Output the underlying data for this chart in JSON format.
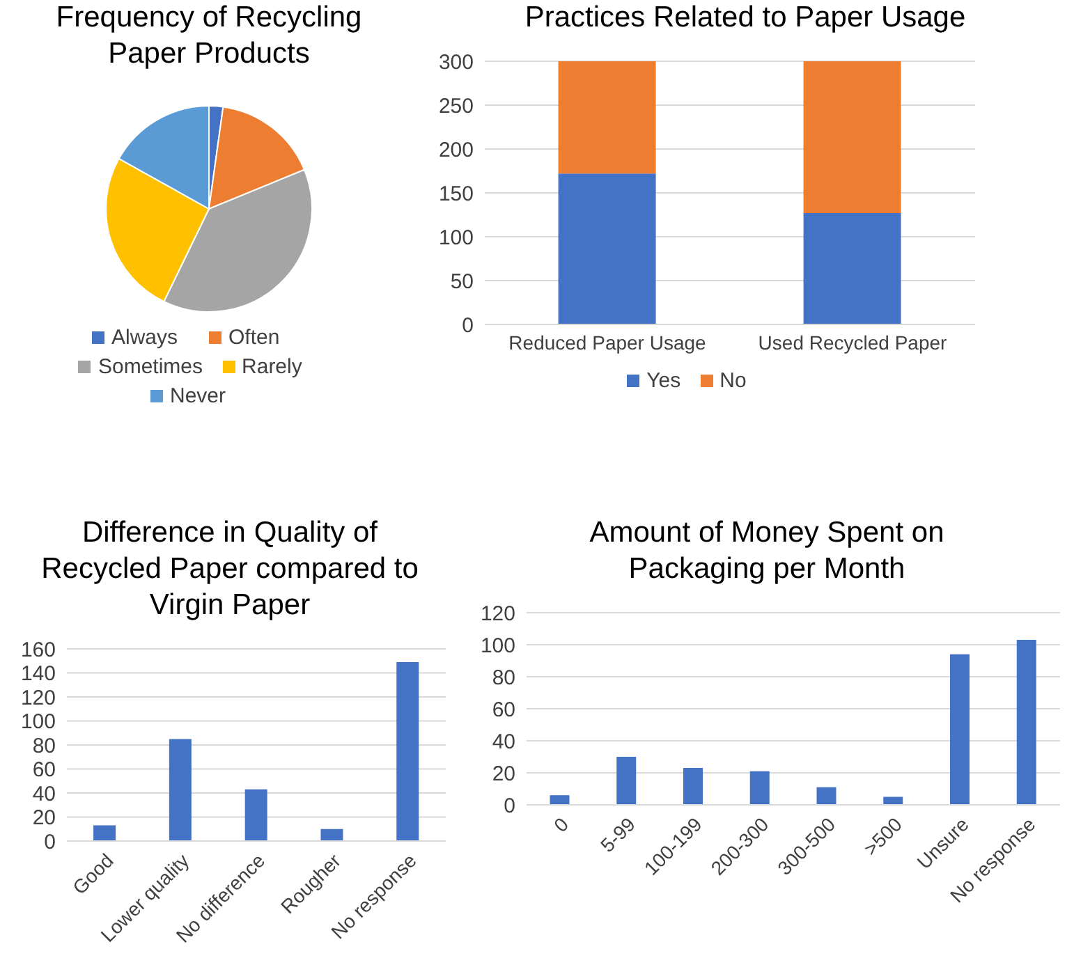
{
  "chart_data": [
    {
      "type": "pie",
      "title": "Frequency of Recycling Paper Products",
      "categories": [
        "Always",
        "Often",
        "Sometimes",
        "Rarely",
        "Never"
      ],
      "values": [
        2.2,
        16.6,
        38.4,
        25.9,
        16.9
      ],
      "colors": [
        "#4472c4",
        "#ed7d31",
        "#a5a5a5",
        "#ffc000",
        "#5b9bd5"
      ],
      "legend": "bottom"
    },
    {
      "type": "bar",
      "title": "Practices Related to Paper Usage",
      "categories": [
        "Reduced Paper Usage",
        "Used Recycled Paper"
      ],
      "stacked": true,
      "series": [
        {
          "name": "Yes",
          "color": "#4472c4",
          "values": [
            172,
            127
          ]
        },
        {
          "name": "No",
          "color": "#ed7d31",
          "values": [
            128,
            173
          ]
        }
      ],
      "ylim": [
        0,
        300
      ],
      "yticks": [
        0,
        50,
        100,
        150,
        200,
        250,
        300
      ],
      "grid": "y",
      "legend": "bottom"
    },
    {
      "type": "bar",
      "title": "Difference in Quality of Recycled Paper compared to Virgin Paper",
      "categories": [
        "Good",
        "Lower quality",
        "No difference",
        "Rougher",
        "No response"
      ],
      "values": [
        13,
        85,
        43,
        10,
        149
      ],
      "color": "#4472c4",
      "ylim": [
        0,
        160
      ],
      "yticks": [
        0,
        20,
        40,
        60,
        80,
        100,
        120,
        140,
        160
      ],
      "grid": "y"
    },
    {
      "type": "bar",
      "title": "Amount of Money Spent on Packaging per Month",
      "categories": [
        "0",
        "5-99",
        "100-199",
        "200-300",
        "300-500",
        ">500",
        "Unsure",
        "No response"
      ],
      "values": [
        6,
        30,
        23,
        21,
        11,
        5,
        94,
        103
      ],
      "color": "#4472c4",
      "ylim": [
        0,
        120
      ],
      "yticks": [
        0,
        20,
        40,
        60,
        80,
        100,
        120
      ],
      "grid": "y"
    }
  ]
}
